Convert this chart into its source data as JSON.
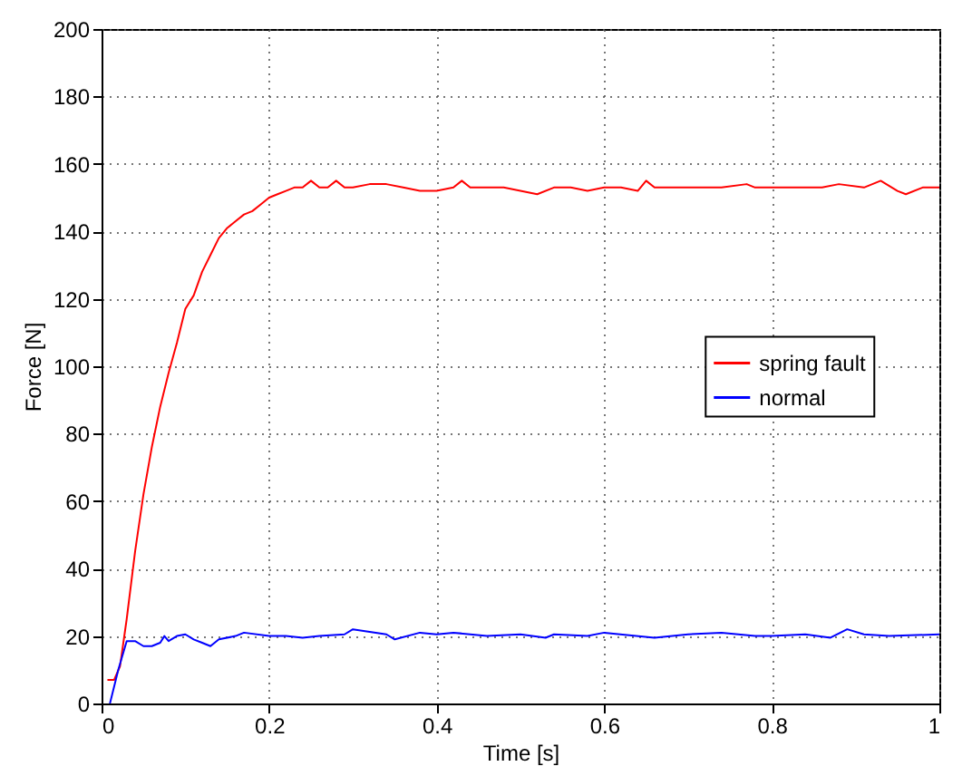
{
  "chart_data": {
    "type": "line",
    "xlabel": "Time [s]",
    "ylabel": "Force [N]",
    "xlim": [
      0,
      1
    ],
    "xticks": [
      0,
      0.2,
      0.4,
      0.6,
      0.8,
      1
    ],
    "ylim": [
      0,
      200
    ],
    "yticks": [
      0,
      20,
      40,
      60,
      80,
      100,
      120,
      140,
      160,
      180,
      200
    ],
    "grid": true,
    "legend": "right",
    "line_style": "solid",
    "series": [
      {
        "name": "spring fault",
        "color": "#ff0000",
        "x": [
          0.007,
          0.015,
          0.022,
          0.03,
          0.04,
          0.05,
          0.06,
          0.07,
          0.08,
          0.09,
          0.1,
          0.11,
          0.12,
          0.13,
          0.14,
          0.15,
          0.16,
          0.17,
          0.18,
          0.19,
          0.2,
          0.21,
          0.22,
          0.23,
          0.24,
          0.25,
          0.26,
          0.27,
          0.28,
          0.29,
          0.3,
          0.32,
          0.34,
          0.36,
          0.38,
          0.4,
          0.42,
          0.43,
          0.44,
          0.46,
          0.48,
          0.5,
          0.52,
          0.54,
          0.56,
          0.58,
          0.6,
          0.62,
          0.64,
          0.65,
          0.66,
          0.7,
          0.74,
          0.77,
          0.78,
          0.82,
          0.86,
          0.88,
          0.91,
          0.93,
          0.95,
          0.96,
          0.98,
          1
        ],
        "values": [
          7,
          7,
          11,
          25,
          45,
          62,
          76,
          88,
          98,
          107,
          117,
          121,
          128,
          133,
          138,
          141,
          143,
          145,
          146,
          148,
          150,
          151,
          152,
          153,
          153,
          155,
          153,
          153,
          155,
          153,
          153,
          154,
          154,
          153,
          152,
          152,
          153,
          155,
          153,
          153,
          153,
          152,
          151,
          153,
          153,
          152,
          153,
          153,
          152,
          155,
          153,
          153,
          153,
          154,
          153,
          153,
          153,
          154,
          153,
          155,
          152,
          151,
          153,
          153
        ]
      },
      {
        "name": "normal",
        "color": "#0000ff",
        "x": [
          0.01,
          0.02,
          0.03,
          0.04,
          0.05,
          0.06,
          0.07,
          0.075,
          0.08,
          0.09,
          0.1,
          0.11,
          0.12,
          0.13,
          0.14,
          0.16,
          0.17,
          0.2,
          0.22,
          0.24,
          0.26,
          0.29,
          0.3,
          0.34,
          0.35,
          0.38,
          0.4,
          0.42,
          0.44,
          0.46,
          0.5,
          0.53,
          0.54,
          0.58,
          0.6,
          0.66,
          0.7,
          0.74,
          0.78,
          0.8,
          0.84,
          0.87,
          0.89,
          0.91,
          0.94,
          1
        ],
        "values": [
          0,
          10,
          18.5,
          18.5,
          17,
          17,
          18,
          20,
          18.5,
          20,
          20.5,
          19,
          18,
          17,
          19,
          20,
          21,
          20,
          20,
          19.5,
          20,
          20.5,
          22,
          20.5,
          19,
          21,
          20.5,
          21,
          20.5,
          20,
          20.5,
          19.5,
          20.5,
          20,
          21,
          19.5,
          20.5,
          21,
          20,
          20,
          20.5,
          19.5,
          22,
          20.5,
          20,
          20.5
        ]
      }
    ]
  }
}
